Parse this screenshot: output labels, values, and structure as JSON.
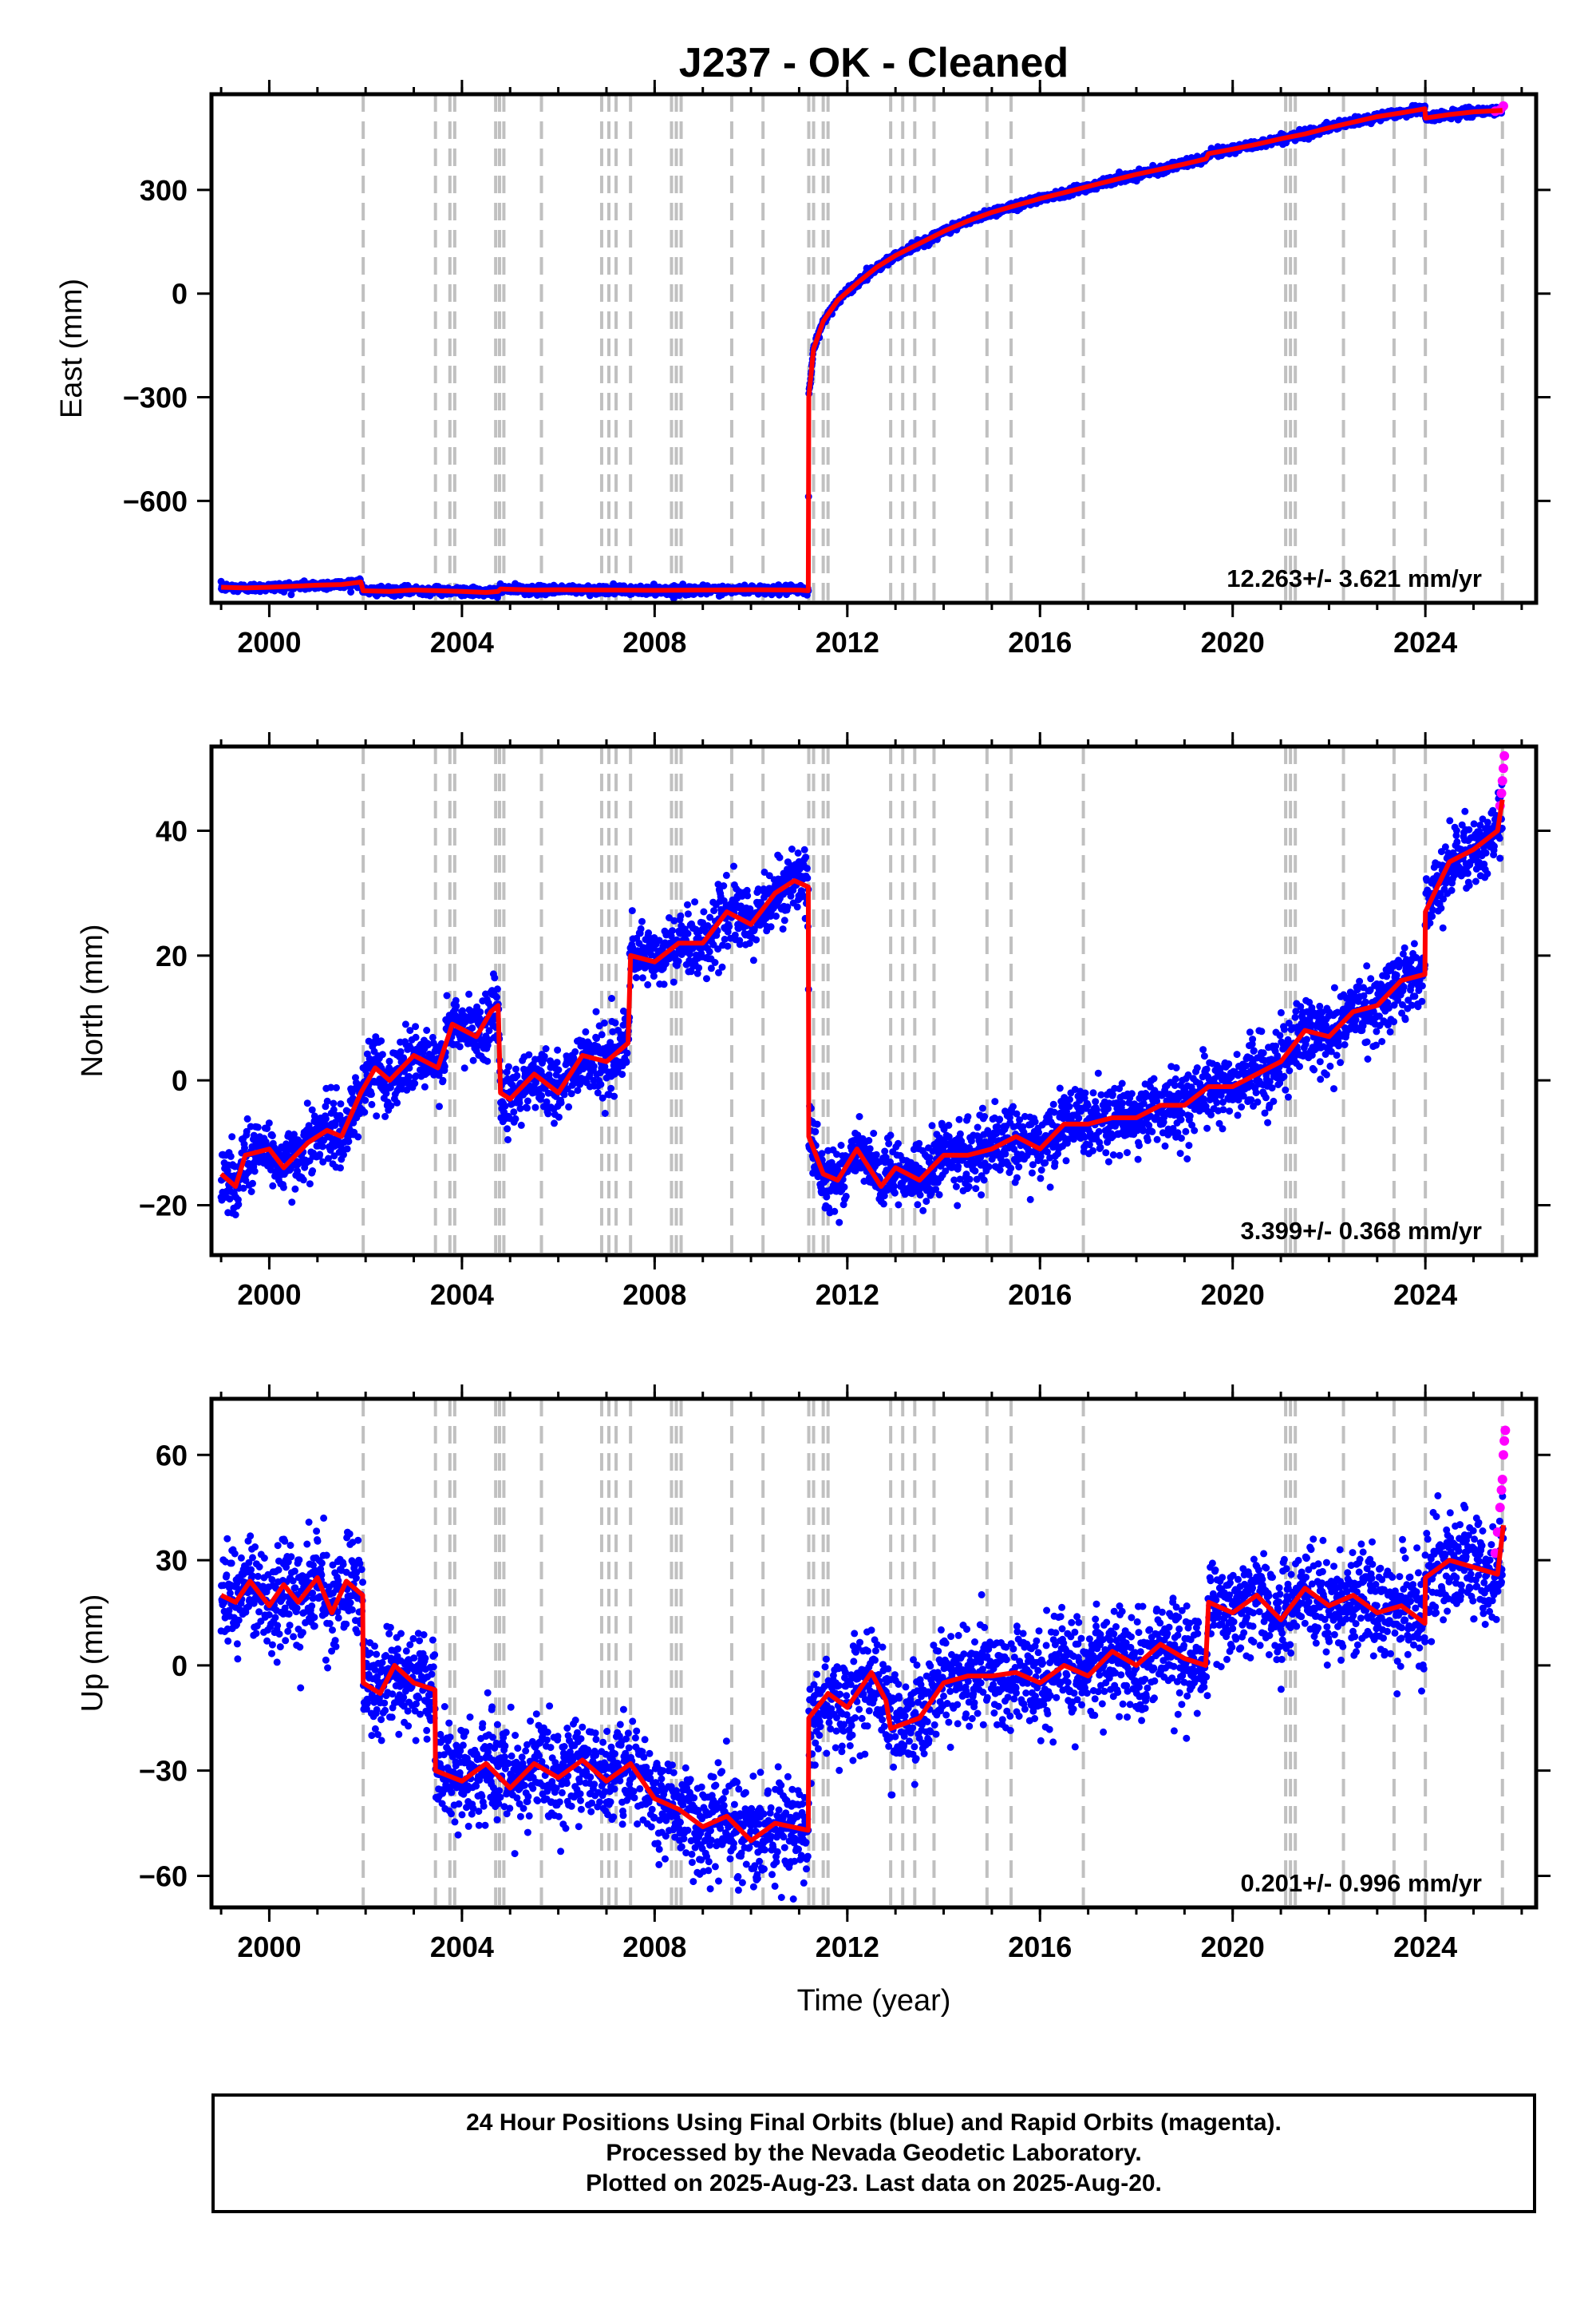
{
  "title": "J237  - OK - Cleaned",
  "x_axis_label": "Time (year)",
  "colors": {
    "final": "#0000ff",
    "rapid": "#ff00ff",
    "model": "#ff0000",
    "events": "#c0c0c0"
  },
  "footer": {
    "line1": "24 Hour Positions Using Final Orbits (blue) and Rapid Orbits (magenta).",
    "line2": "Processed by the Nevada Geodetic Laboratory.",
    "line3": "Plotted on 2025-Aug-23. Last data on 2025-Aug-20."
  },
  "chart_data": [
    {
      "type": "scatter",
      "name": "east",
      "ylabel": "East (mm)",
      "xlim": [
        1998.8,
        2026.3
      ],
      "ylim": [
        -895,
        577
      ],
      "xticks": [
        "2000",
        "2004",
        "2008",
        "2012",
        "2016",
        "2020",
        "2024"
      ],
      "xtick_values": [
        2000,
        2004,
        2008,
        2012,
        2016,
        2020,
        2024
      ],
      "yticks": [
        "−600",
        "−300",
        "0",
        "300"
      ],
      "ytick_values": [
        -600,
        -300,
        0,
        300
      ],
      "rate_text": "12.263+/- 3.621 mm/yr",
      "event_years": [
        2001.95,
        2003.45,
        2003.75,
        2003.85,
        2004.7,
        2004.78,
        2004.87,
        2005.65,
        2006.9,
        2007.05,
        2007.2,
        2007.5,
        2008.35,
        2008.45,
        2008.55,
        2009.6,
        2010.25,
        2011.2,
        2011.3,
        2011.5,
        2011.6,
        2012.9,
        2013.15,
        2013.4,
        2013.8,
        2014.9,
        2015.4,
        2016.9,
        2021.1,
        2021.2,
        2021.3,
        2022.3,
        2023.35,
        2024.0,
        2025.6
      ],
      "series": [
        {
          "name": "model",
          "x": [
            1999.0,
            1999.5,
            2000.0,
            2000.5,
            2001.0,
            2001.5,
            2001.9,
            2001.95,
            2002.5,
            2003.0,
            2003.5,
            2004.0,
            2004.5,
            2004.75,
            2004.8,
            2005.5,
            2006.0,
            2007.0,
            2008.0,
            2009.0,
            2010.0,
            2011.0,
            2011.19,
            2011.2,
            2011.3,
            2011.5,
            2011.8,
            2012.2,
            2012.6,
            2013.0,
            2013.5,
            2014.0,
            2014.5,
            2015.0,
            2015.5,
            2016.0,
            2016.5,
            2017.0,
            2018.0,
            2019.0,
            2019.45,
            2019.5,
            2020.0,
            2020.5,
            2021.0,
            2021.5,
            2022.0,
            2022.5,
            2023.0,
            2023.5,
            2023.99,
            2024.0,
            2024.5,
            2025.0,
            2025.6
          ],
          "y": [
            -850,
            -852,
            -850,
            -847,
            -844,
            -842,
            -835,
            -860,
            -862,
            -858,
            -860,
            -862,
            -865,
            -862,
            -855,
            -858,
            -857,
            -858,
            -859,
            -858,
            -857,
            -858,
            -860,
            -300,
            -160,
            -80,
            -20,
            30,
            75,
            110,
            145,
            180,
            210,
            235,
            255,
            275,
            292,
            310,
            345,
            375,
            390,
            405,
            418,
            432,
            448,
            462,
            480,
            496,
            512,
            523,
            535,
            508,
            518,
            526,
            530
          ]
        },
        {
          "name": "final",
          "noise": 6
        },
        {
          "name": "rapid",
          "x": [
            2025.45,
            2025.55,
            2025.62
          ],
          "y": [
            528,
            532,
            543
          ]
        }
      ]
    },
    {
      "type": "scatter",
      "name": "north",
      "ylabel": "North (mm)",
      "xlim": [
        1998.8,
        2026.3
      ],
      "ylim": [
        -28,
        53.5
      ],
      "xticks": [
        "2000",
        "2004",
        "2008",
        "2012",
        "2016",
        "2020",
        "2024"
      ],
      "xtick_values": [
        2000,
        2004,
        2008,
        2012,
        2016,
        2020,
        2024
      ],
      "yticks": [
        "−20",
        "0",
        "20",
        "40"
      ],
      "ytick_values": [
        -20,
        0,
        20,
        40
      ],
      "rate_text": "3.399+/- 0.368 mm/yr",
      "event_years": [
        2001.95,
        2003.45,
        2003.75,
        2003.85,
        2004.7,
        2004.78,
        2004.87,
        2005.65,
        2006.9,
        2007.05,
        2007.2,
        2007.5,
        2008.35,
        2008.45,
        2008.55,
        2009.6,
        2010.25,
        2011.2,
        2011.3,
        2011.5,
        2011.6,
        2012.9,
        2013.15,
        2013.4,
        2013.8,
        2014.9,
        2015.4,
        2016.9,
        2021.1,
        2021.2,
        2021.3,
        2022.3,
        2023.35,
        2024.0,
        2025.6
      ],
      "series": [
        {
          "name": "model",
          "x": [
            1999.0,
            1999.3,
            1999.5,
            2000.0,
            2000.3,
            2000.8,
            2001.2,
            2001.5,
            2001.9,
            2002.2,
            2002.5,
            2003.0,
            2003.5,
            2003.8,
            2004.3,
            2004.6,
            2004.75,
            2004.8,
            2005.0,
            2005.5,
            2006.0,
            2006.5,
            2007.0,
            2007.45,
            2007.5,
            2008.0,
            2008.5,
            2009.0,
            2009.5,
            2010.0,
            2010.5,
            2010.9,
            2011.19,
            2011.2,
            2011.5,
            2011.8,
            2012.2,
            2012.7,
            2013.0,
            2013.5,
            2014.0,
            2014.5,
            2015.0,
            2015.5,
            2016.0,
            2016.5,
            2017.0,
            2017.5,
            2018.0,
            2018.5,
            2019.0,
            2019.5,
            2020.0,
            2020.5,
            2021.0,
            2021.5,
            2022.0,
            2022.5,
            2023.0,
            2023.5,
            2023.99,
            2024.0,
            2024.5,
            2025.0,
            2025.5,
            2025.6
          ],
          "y": [
            -15,
            -17,
            -12,
            -11,
            -14,
            -10,
            -8,
            -9,
            -2,
            2,
            0,
            4,
            2,
            9,
            7,
            11,
            12,
            -2,
            -3,
            1,
            -2,
            4,
            3,
            6,
            20,
            19,
            22,
            22,
            27,
            25,
            30,
            32,
            31,
            -9,
            -15,
            -16,
            -11,
            -17,
            -14,
            -16,
            -12,
            -12,
            -11,
            -9,
            -11,
            -7,
            -7,
            -6,
            -6,
            -4,
            -4,
            -1,
            -1,
            1,
            3,
            8,
            7,
            11,
            12,
            16,
            17,
            27,
            35,
            37,
            40,
            45
          ]
        },
        {
          "name": "final",
          "noise": 2.6
        },
        {
          "name": "rapid",
          "x": [
            2025.55,
            2025.58,
            2025.6,
            2025.62,
            2025.64
          ],
          "y": [
            44,
            46,
            48,
            50,
            52
          ]
        }
      ]
    },
    {
      "type": "scatter",
      "name": "up",
      "ylabel": "Up (mm)",
      "xlim": [
        1998.8,
        2026.3
      ],
      "ylim": [
        -69,
        76
      ],
      "xticks": [
        "2000",
        "2004",
        "2008",
        "2012",
        "2016",
        "2020",
        "2024"
      ],
      "xtick_values": [
        2000,
        2004,
        2008,
        2012,
        2016,
        2020,
        2024
      ],
      "yticks": [
        "−60",
        "−30",
        "0",
        "30",
        "60"
      ],
      "ytick_values": [
        -60,
        -30,
        0,
        30,
        60
      ],
      "rate_text": "0.201+/- 0.996 mm/yr",
      "event_years": [
        2001.95,
        2003.45,
        2003.75,
        2003.85,
        2004.7,
        2004.78,
        2004.87,
        2005.65,
        2006.9,
        2007.05,
        2007.2,
        2007.5,
        2008.35,
        2008.45,
        2008.55,
        2009.6,
        2010.25,
        2011.2,
        2011.3,
        2011.5,
        2011.6,
        2012.9,
        2013.15,
        2013.4,
        2013.8,
        2014.9,
        2015.4,
        2016.9,
        2021.1,
        2021.2,
        2021.3,
        2022.3,
        2023.35,
        2024.0,
        2025.6
      ],
      "series": [
        {
          "name": "model",
          "x": [
            1999.0,
            1999.3,
            1999.6,
            2000.0,
            2000.3,
            2000.6,
            2001.0,
            2001.3,
            2001.6,
            2001.94,
            2001.95,
            2002.3,
            2002.6,
            2003.0,
            2003.44,
            2003.45,
            2004.0,
            2004.5,
            2005.0,
            2005.5,
            2006.0,
            2006.5,
            2007.0,
            2007.5,
            2008.0,
            2008.5,
            2009.0,
            2009.5,
            2010.0,
            2010.5,
            2011.19,
            2011.2,
            2011.6,
            2012.0,
            2012.5,
            2012.8,
            2012.9,
            2013.5,
            2014.0,
            2014.5,
            2015.0,
            2015.5,
            2016.0,
            2016.5,
            2017.0,
            2017.5,
            2018.0,
            2018.5,
            2019.0,
            2019.44,
            2019.5,
            2020.0,
            2020.5,
            2021.0,
            2021.5,
            2022.0,
            2022.5,
            2023.0,
            2023.5,
            2023.99,
            2024.0,
            2024.5,
            2025.0,
            2025.5,
            2025.62
          ],
          "y": [
            20,
            18,
            24,
            17,
            23,
            18,
            25,
            15,
            24,
            20,
            -5,
            -8,
            0,
            -5,
            -7,
            -30,
            -33,
            -28,
            -35,
            -28,
            -32,
            -27,
            -33,
            -28,
            -38,
            -41,
            -46,
            -43,
            -50,
            -45,
            -47,
            -15,
            -8,
            -12,
            -2,
            -10,
            -18,
            -15,
            -5,
            -3,
            -3,
            -2,
            -5,
            0,
            -3,
            4,
            0,
            6,
            2,
            0,
            18,
            15,
            20,
            13,
            22,
            17,
            20,
            15,
            17,
            12,
            25,
            30,
            28,
            26,
            40
          ]
        },
        {
          "name": "final",
          "noise": 7
        },
        {
          "name": "rapid",
          "x": [
            2025.45,
            2025.5,
            2025.55,
            2025.58,
            2025.6,
            2025.62,
            2025.64,
            2025.66
          ],
          "y": [
            32,
            38,
            45,
            50,
            53,
            60,
            64,
            67
          ]
        }
      ]
    }
  ]
}
